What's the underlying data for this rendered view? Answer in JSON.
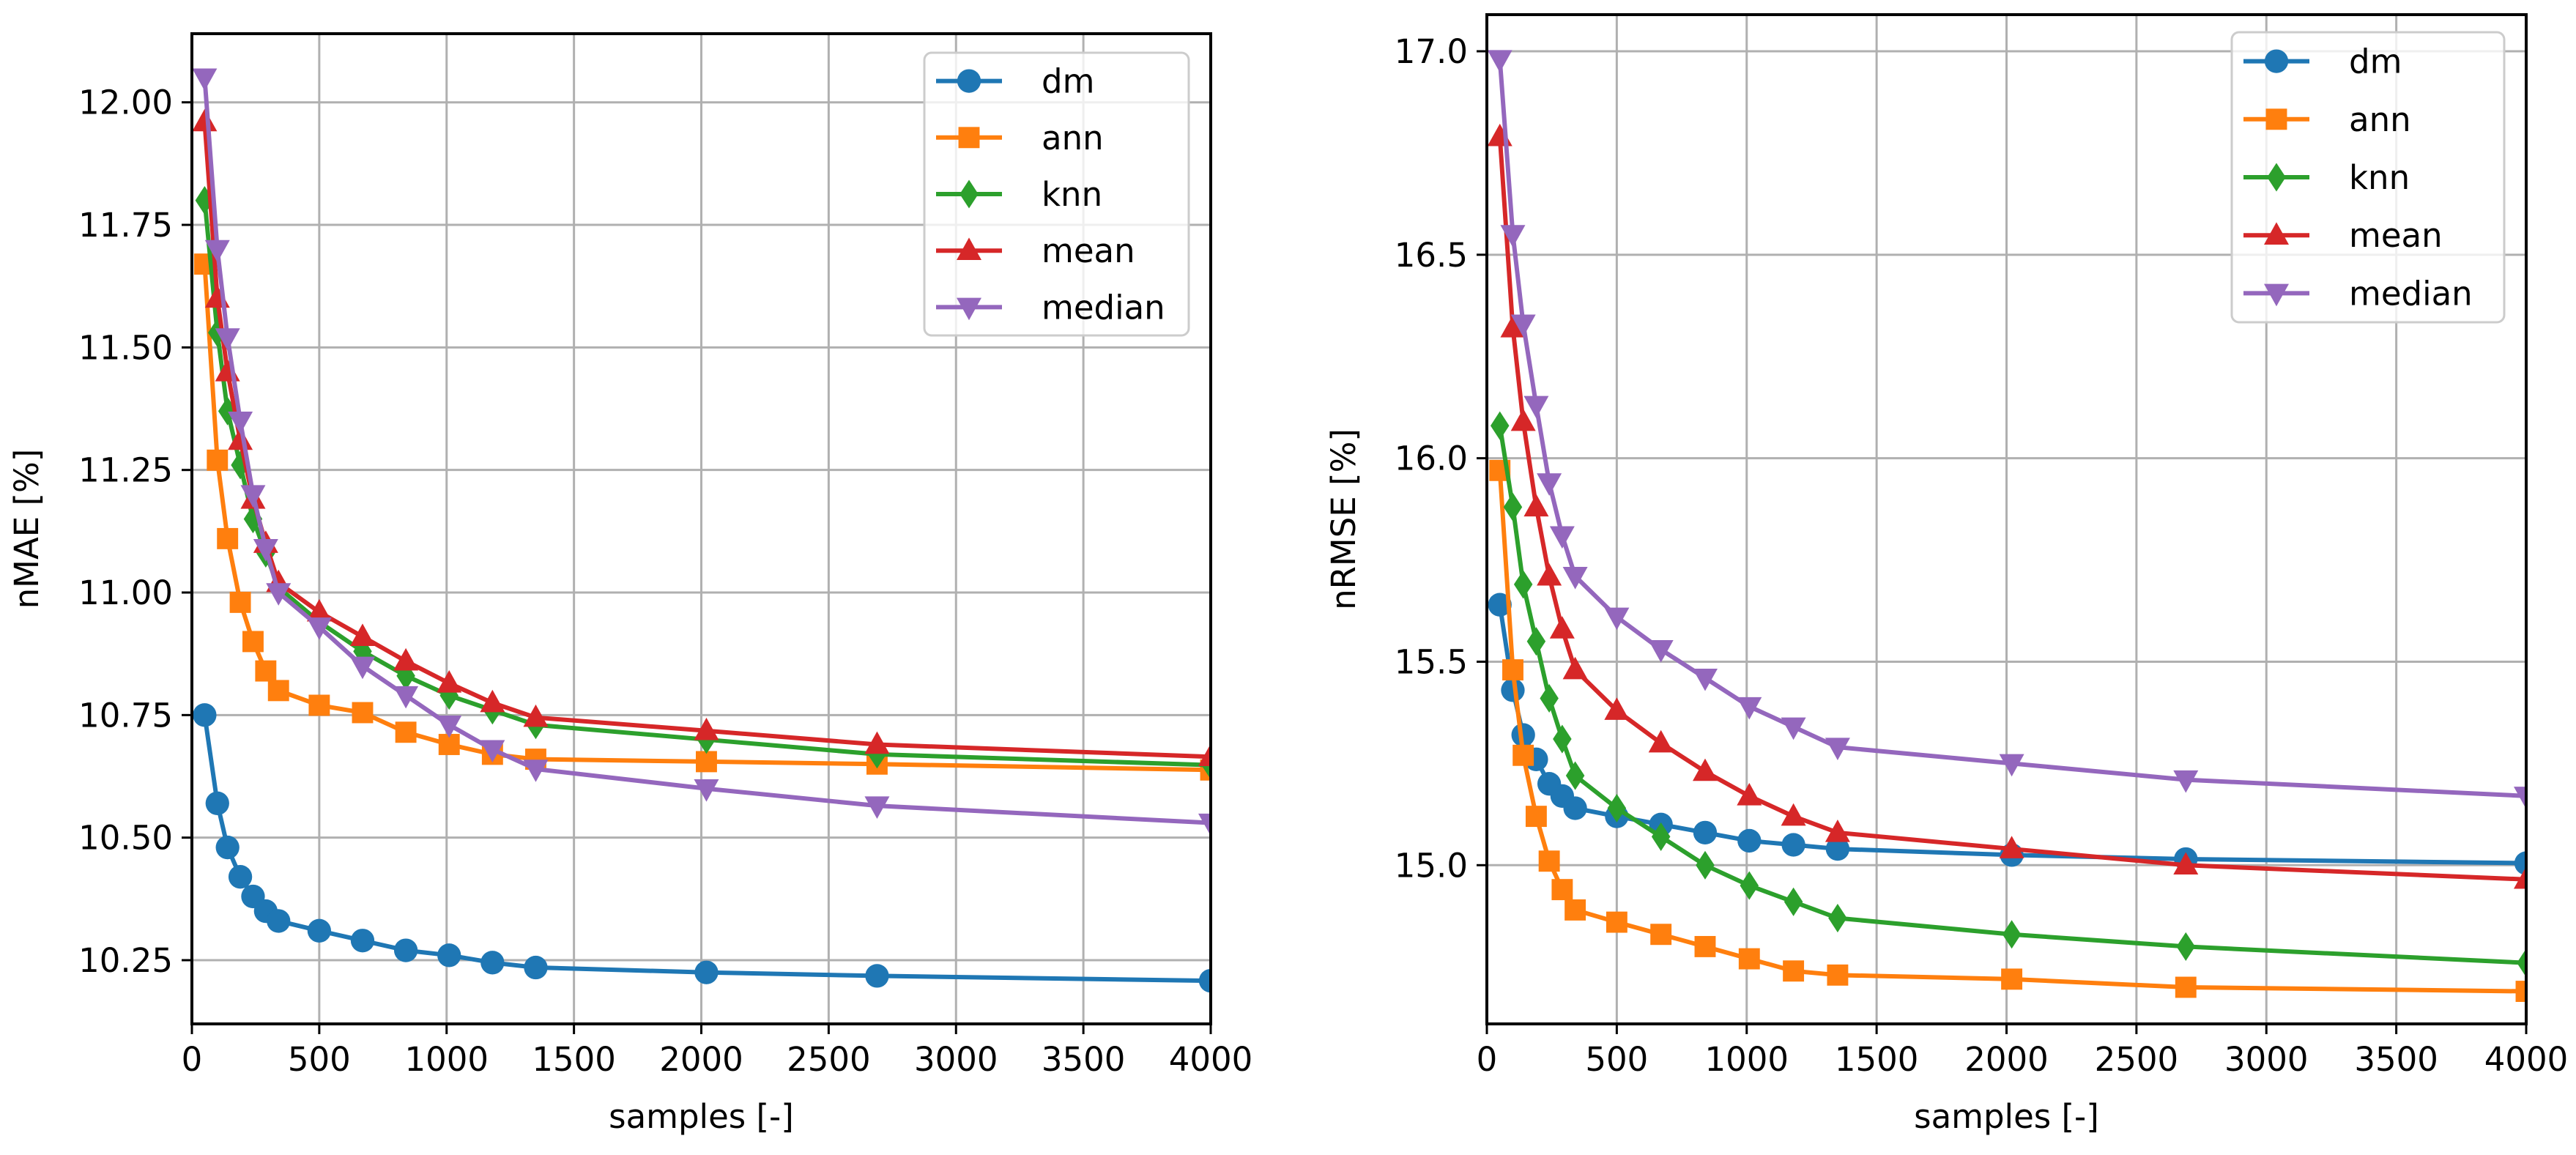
{
  "figure": {
    "background": "#ffffff",
    "grid_color": "#b0b0b0",
    "series_styles": [
      {
        "name": "dm",
        "color": "#1f77b4",
        "marker": "circle"
      },
      {
        "name": "ann",
        "color": "#ff7f0e",
        "marker": "square"
      },
      {
        "name": "knn",
        "color": "#2ca02c",
        "marker": "diamond"
      },
      {
        "name": "mean",
        "color": "#d62728",
        "marker": "triangle-up"
      },
      {
        "name": "median",
        "color": "#9467bd",
        "marker": "triangle-down"
      }
    ]
  },
  "chart_data": [
    {
      "type": "line",
      "title": "",
      "xlabel": "samples [-]",
      "ylabel": "nMAE [%]",
      "xlim": [
        0,
        4000
      ],
      "ylim": [
        10.12,
        12.14
      ],
      "xticks": [
        0,
        500,
        1000,
        1500,
        2000,
        2500,
        3000,
        3500,
        4000
      ],
      "xtick_labels": [
        "0",
        "500",
        "1000",
        "1500",
        "2000",
        "2500",
        "3000",
        "3500",
        "4000"
      ],
      "yticks": [
        10.25,
        10.5,
        10.75,
        11.0,
        11.25,
        11.5,
        11.75,
        12.0
      ],
      "ytick_labels": [
        "10.25",
        "10.50",
        "10.75",
        "11.00",
        "11.25",
        "11.50",
        "11.75",
        "12.00"
      ],
      "grid": true,
      "legend": "top-right",
      "x": [
        50,
        100,
        140,
        190,
        240,
        290,
        340,
        500,
        670,
        840,
        1010,
        1180,
        1350,
        2020,
        2690,
        4000
      ],
      "series": [
        {
          "name": "dm",
          "values": [
            10.75,
            10.57,
            10.48,
            10.42,
            10.38,
            10.35,
            10.33,
            10.31,
            10.29,
            10.27,
            10.26,
            10.245,
            10.235,
            10.225,
            10.218,
            10.208
          ]
        },
        {
          "name": "ann",
          "values": [
            11.67,
            11.27,
            11.11,
            10.98,
            10.9,
            10.84,
            10.8,
            10.77,
            10.755,
            10.715,
            10.69,
            10.67,
            10.66,
            10.655,
            10.65,
            10.638
          ]
        },
        {
          "name": "knn",
          "values": [
            11.8,
            11.53,
            11.37,
            11.26,
            11.15,
            11.08,
            11.01,
            10.94,
            10.88,
            10.83,
            10.79,
            10.76,
            10.73,
            10.7,
            10.67,
            10.648
          ]
        },
        {
          "name": "mean",
          "values": [
            11.96,
            11.6,
            11.45,
            11.31,
            11.19,
            11.1,
            11.02,
            10.96,
            10.91,
            10.86,
            10.815,
            10.775,
            10.745,
            10.718,
            10.69,
            10.665
          ]
        },
        {
          "name": "median",
          "values": [
            12.05,
            11.7,
            11.52,
            11.35,
            11.2,
            11.09,
            11.0,
            10.93,
            10.85,
            10.79,
            10.73,
            10.68,
            10.64,
            10.6,
            10.565,
            10.53
          ]
        }
      ]
    },
    {
      "type": "line",
      "title": "",
      "xlabel": "samples [-]",
      "ylabel": "nRMSE [%]",
      "xlim": [
        0,
        4000
      ],
      "ylim": [
        14.61,
        17.09
      ],
      "xticks": [
        0,
        500,
        1000,
        1500,
        2000,
        2500,
        3000,
        3500,
        4000
      ],
      "xtick_labels": [
        "0",
        "500",
        "1000",
        "1500",
        "2000",
        "2500",
        "3000",
        "3500",
        "4000"
      ],
      "yticks": [
        15.0,
        15.5,
        16.0,
        16.5,
        17.0
      ],
      "ytick_labels": [
        "15.0",
        "15.5",
        "16.0",
        "16.5",
        "17.0"
      ],
      "grid": true,
      "legend": "top-right",
      "x": [
        50,
        100,
        140,
        190,
        240,
        290,
        340,
        500,
        670,
        840,
        1010,
        1180,
        1350,
        2020,
        2690,
        4000
      ],
      "series": [
        {
          "name": "dm",
          "values": [
            15.64,
            15.43,
            15.32,
            15.26,
            15.2,
            15.17,
            15.14,
            15.12,
            15.1,
            15.08,
            15.06,
            15.05,
            15.04,
            15.025,
            15.015,
            15.005
          ]
        },
        {
          "name": "ann",
          "values": [
            15.97,
            15.48,
            15.27,
            15.12,
            15.01,
            14.94,
            14.89,
            14.86,
            14.83,
            14.8,
            14.77,
            14.74,
            14.73,
            14.72,
            14.7,
            14.69
          ]
        },
        {
          "name": "knn",
          "values": [
            16.08,
            15.88,
            15.69,
            15.55,
            15.41,
            15.31,
            15.22,
            15.14,
            15.07,
            15.0,
            14.95,
            14.91,
            14.87,
            14.83,
            14.8,
            14.76
          ]
        },
        {
          "name": "mean",
          "values": [
            16.79,
            16.32,
            16.09,
            15.88,
            15.71,
            15.58,
            15.48,
            15.38,
            15.3,
            15.23,
            15.17,
            15.12,
            15.08,
            15.04,
            15.0,
            14.965
          ]
        },
        {
          "name": "median",
          "values": [
            16.98,
            16.55,
            16.33,
            16.13,
            15.94,
            15.81,
            15.71,
            15.61,
            15.53,
            15.46,
            15.39,
            15.34,
            15.29,
            15.25,
            15.21,
            15.17
          ]
        }
      ]
    }
  ]
}
